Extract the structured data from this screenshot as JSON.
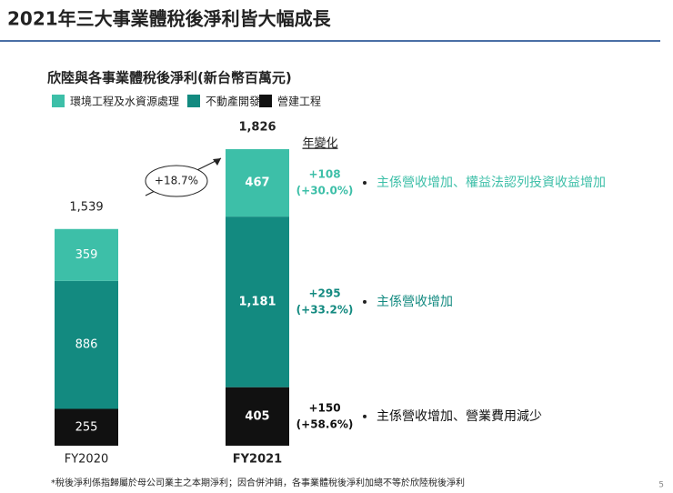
{
  "header": {
    "title": "2021年三大事業體稅後淨利皆大幅成長",
    "page_number": "5"
  },
  "chart_data": {
    "type": "stacked-bar",
    "title": "欣陸與各事業體稅後淨利(新台幣百萬元)",
    "categories": [
      "FY2020",
      "FY2021"
    ],
    "series": [
      {
        "name": "環境工程及水資源處理",
        "color": "#3dbfa8",
        "values": [
          359,
          467
        ]
      },
      {
        "name": "不動產開發",
        "color": "#138a80",
        "values": [
          886,
          1181
        ],
        "value_labels": [
          "886",
          "1,181"
        ]
      },
      {
        "name": "營建工程",
        "color": "#111111",
        "values": [
          255,
          405
        ]
      }
    ],
    "totals": {
      "values": [
        1539,
        1826
      ],
      "value_labels": [
        "1,539",
        "1,826"
      ]
    },
    "growth_label": "+18.7%",
    "change_heading": "年變化",
    "changes": [
      {
        "amount": "+108",
        "percent": "(+30.0%)",
        "note": "主係營收增加、權益法認列投資收益增加",
        "color": "#3dbfa8"
      },
      {
        "amount": "+295",
        "percent": "(+33.2%)",
        "note": "主係營收增加",
        "color": "#138a80"
      },
      {
        "amount": "+150",
        "percent": "(+58.6%)",
        "note": "主係營收增加、營業費用減少",
        "color": "#111111"
      }
    ]
  },
  "footnote": "*稅後淨利係指歸屬於母公司業主之本期淨利；因合併沖銷，各事業體稅後淨利加總不等於欣陸稅後淨利"
}
